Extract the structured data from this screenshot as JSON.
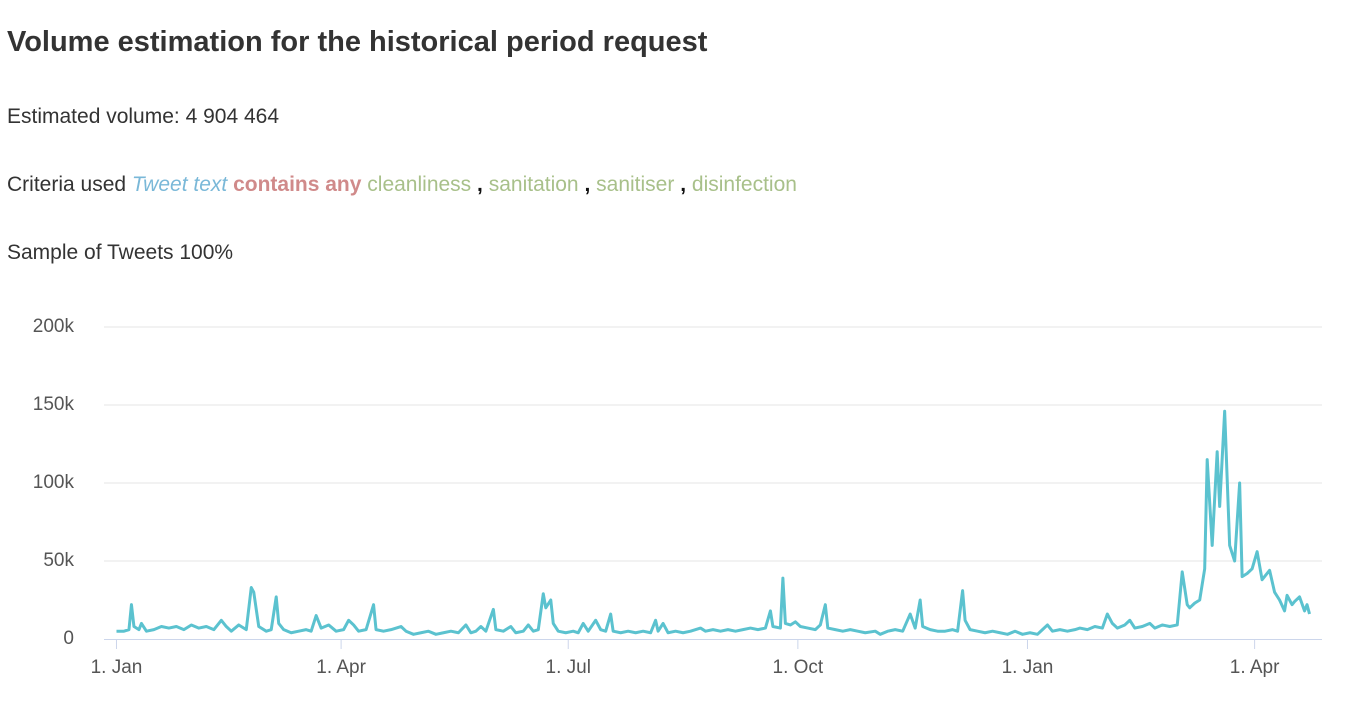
{
  "header": {
    "title": "Volume estimation for the historical period request",
    "volume": "Estimated volume: 4 904 464",
    "criteria": {
      "label": "Criteria used",
      "field": "Tweet text",
      "operator": "contains any",
      "terms": [
        "cleanliness",
        "sanitation",
        "sanitiser",
        "disinfection"
      ],
      "separator": ","
    },
    "sample": "Sample of Tweets 100%"
  },
  "chart_data": {
    "type": "line",
    "color": "#5bc2cf",
    "grid": true,
    "xlim": [
      -5,
      483
    ],
    "xticks": [
      {
        "value": 0,
        "label": "1. Jan"
      },
      {
        "value": 90,
        "label": "1. Apr"
      },
      {
        "value": 181,
        "label": "1. Jul"
      },
      {
        "value": 273,
        "label": "1. Oct"
      },
      {
        "value": 365,
        "label": "1. Jan"
      },
      {
        "value": 456,
        "label": "1. Apr"
      }
    ],
    "ylim": [
      0,
      200000
    ],
    "yticks": [
      0,
      {
        "value": 50000,
        "label": "50k"
      },
      {
        "value": 100000,
        "label": "100k"
      },
      {
        "value": 150000,
        "label": "150k"
      },
      {
        "value": 200000,
        "label": "200k"
      }
    ],
    "x": [
      0,
      3,
      5,
      6,
      7,
      9,
      10,
      12,
      15,
      18,
      21,
      24,
      27,
      30,
      33,
      36,
      39,
      42,
      44,
      46,
      49,
      52,
      54,
      55,
      57,
      60,
      62,
      64,
      65,
      67,
      70,
      73,
      76,
      78,
      80,
      82,
      85,
      88,
      91,
      93,
      95,
      97,
      100,
      103,
      104,
      107,
      110,
      114,
      116,
      119,
      122,
      125,
      128,
      131,
      134,
      137,
      140,
      142,
      144,
      146,
      148,
      151,
      152,
      155,
      158,
      160,
      163,
      165,
      167,
      169,
      171,
      172,
      174,
      175,
      177,
      180,
      183,
      185,
      187,
      189,
      192,
      194,
      196,
      198,
      199,
      202,
      205,
      208,
      211,
      214,
      216,
      217,
      219,
      221,
      224,
      227,
      230,
      234,
      236,
      239,
      242,
      245,
      248,
      251,
      254,
      257,
      260,
      262,
      263,
      266,
      267,
      268,
      270,
      272,
      274,
      277,
      280,
      282,
      284,
      285,
      288,
      291,
      294,
      297,
      300,
      304,
      306,
      309,
      312,
      315,
      318,
      320,
      322,
      323,
      326,
      329,
      332,
      335,
      337,
      339,
      340,
      342,
      345,
      348,
      351,
      354,
      357,
      360,
      363,
      366,
      369,
      371,
      373,
      375,
      378,
      381,
      384,
      386,
      389,
      392,
      395,
      397,
      399,
      401,
      404,
      406,
      408,
      411,
      414,
      416,
      419,
      422,
      425,
      427,
      429,
      430,
      432,
      434,
      436,
      437,
      439,
      441,
      442,
      444,
      446,
      448,
      450,
      451,
      453,
      455,
      457,
      459,
      460,
      462,
      464,
      466,
      468,
      469,
      471,
      472,
      474,
      476,
      477,
      478
    ],
    "values": [
      5000,
      5000,
      6000,
      22000,
      8000,
      6000,
      10000,
      5000,
      6000,
      8000,
      7000,
      8000,
      6000,
      9000,
      7000,
      8000,
      6000,
      12000,
      8000,
      5000,
      9000,
      6000,
      33000,
      30000,
      8000,
      5000,
      6000,
      27000,
      10000,
      6000,
      4000,
      5000,
      6000,
      5000,
      15000,
      7000,
      9000,
      5000,
      6000,
      12000,
      9000,
      5000,
      6000,
      22000,
      6000,
      5000,
      6000,
      8000,
      5000,
      3000,
      4000,
      5000,
      3000,
      4000,
      5000,
      4000,
      9000,
      4000,
      5000,
      8000,
      5000,
      19000,
      6000,
      5000,
      8000,
      4000,
      5000,
      9000,
      5000,
      6000,
      29000,
      20000,
      25000,
      10000,
      5000,
      4000,
      5000,
      4000,
      10000,
      5000,
      12000,
      6000,
      5000,
      16000,
      5000,
      4000,
      5000,
      4000,
      5000,
      4000,
      12000,
      5000,
      10000,
      4000,
      5000,
      4000,
      5000,
      7000,
      5000,
      6000,
      5000,
      6000,
      5000,
      6000,
      7000,
      6000,
      7000,
      18000,
      8000,
      7000,
      39000,
      10000,
      9000,
      11000,
      8000,
      7000,
      6000,
      9000,
      22000,
      7000,
      6000,
      5000,
      6000,
      5000,
      4000,
      5000,
      3000,
      5000,
      6000,
      5000,
      16000,
      7000,
      25000,
      8000,
      6000,
      5000,
      5000,
      6000,
      5000,
      31000,
      12000,
      6000,
      5000,
      4000,
      5000,
      4000,
      3000,
      5000,
      3000,
      4000,
      3000,
      6000,
      9000,
      5000,
      6000,
      5000,
      6000,
      7000,
      6000,
      8000,
      7000,
      16000,
      10000,
      7000,
      9000,
      12000,
      7000,
      8000,
      10000,
      7000,
      9000,
      8000,
      9000,
      43000,
      22000,
      20000,
      23000,
      25000,
      45000,
      115000,
      60000,
      120000,
      85000,
      146000,
      60000,
      50000,
      100000,
      40000,
      42000,
      45000,
      56000,
      38000,
      40000,
      44000,
      30000,
      25000,
      18000,
      28000,
      22000,
      24000,
      27000,
      18000,
      22000,
      16000
    ]
  }
}
